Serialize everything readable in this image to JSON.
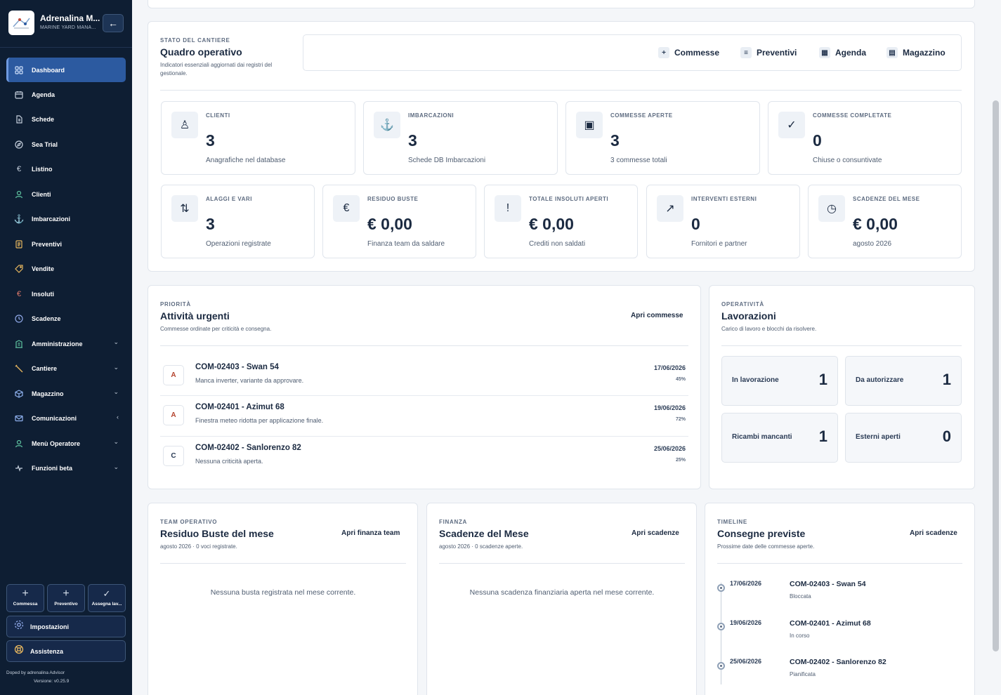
{
  "brand": {
    "name": "Adrenalina M...",
    "subtitle": "MARINE YARD MANA..."
  },
  "sidebar": {
    "items": [
      {
        "label": "Dashboard",
        "icon": "grid-icon",
        "active": true
      },
      {
        "label": "Agenda",
        "icon": "calendar-icon"
      },
      {
        "label": "Schede",
        "icon": "document-icon"
      },
      {
        "label": "Sea Trial",
        "icon": "compass-icon"
      },
      {
        "label": "Listino",
        "icon": "euro-icon"
      },
      {
        "label": "Clienti",
        "icon": "user-icon"
      },
      {
        "label": "Imbarcazioni",
        "icon": "anchor-icon"
      },
      {
        "label": "Preventivi",
        "icon": "file-list-icon"
      },
      {
        "label": "Vendite",
        "icon": "tag-icon"
      },
      {
        "label": "Insoluti",
        "icon": "euro-icon"
      },
      {
        "label": "Scadenze",
        "icon": "clock-icon"
      },
      {
        "label": "Amministrazione",
        "icon": "building-icon",
        "chevron": "⌄"
      },
      {
        "label": "Cantiere",
        "icon": "tools-icon",
        "chevron": "⌄"
      },
      {
        "label": "Magazzino",
        "icon": "box-icon",
        "chevron": "⌄"
      },
      {
        "label": "Comunicazioni",
        "icon": "mail-icon",
        "chevron": "‹"
      },
      {
        "label": "Menù Operatore",
        "icon": "operator-icon",
        "chevron": "⌄"
      },
      {
        "label": "Funzioni beta",
        "icon": "pulse-icon",
        "chevron": "⌄"
      }
    ],
    "quick_actions": [
      "Commessa",
      "Preventivo",
      "Assegna lav..."
    ],
    "settings": "Impostazioni",
    "support": "Assistenza",
    "doped": "Doped by adrenalina Advisor",
    "version": "Versione: v0.25.9"
  },
  "overview": {
    "kicker": "STATO DEL CANTIERE",
    "title": "Quadro operativo",
    "description": "Indicatori essenziali aggiornati dai registri del gestionale.",
    "tabs": [
      {
        "label": "Commesse",
        "icon": "+"
      },
      {
        "label": "Preventivi",
        "icon": "≡"
      },
      {
        "label": "Agenda",
        "icon": "▦"
      },
      {
        "label": "Magazzino",
        "icon": "▤"
      }
    ],
    "metrics_row1": [
      {
        "kicker": "CLIENTI",
        "value": "3",
        "desc": "Anagrafiche nel database",
        "icon": "♙"
      },
      {
        "kicker": "IMBARCAZIONI",
        "value": "3",
        "desc": "Schede DB Imbarcazioni",
        "icon": "⚓"
      },
      {
        "kicker": "COMMESSE APERTE",
        "value": "3",
        "desc": "3 commesse totali",
        "icon": "▣"
      },
      {
        "kicker": "COMMESSE COMPLETATE",
        "value": "0",
        "desc": "Chiuse o consuntivate",
        "icon": "✓"
      }
    ],
    "metrics_row2": [
      {
        "kicker": "ALAGGI E VARI",
        "value": "3",
        "desc": "Operazioni registrate",
        "icon": "⇅"
      },
      {
        "kicker": "RESIDUO BUSTE",
        "value": "€ 0,00",
        "desc": "Finanza team da saldare",
        "icon": "€"
      },
      {
        "kicker": "TOTALE INSOLUTI APERTI",
        "value": "€ 0,00",
        "desc": "Crediti non saldati",
        "icon": "!"
      },
      {
        "kicker": "INTERVENTI ESTERNI",
        "value": "0",
        "desc": "Fornitori e partner",
        "icon": "↗"
      },
      {
        "kicker": "SCADENZE DEL MESE",
        "value": "€ 0,00",
        "desc": "agosto 2026",
        "icon": "◷"
      }
    ]
  },
  "urgent": {
    "kicker": "PRIORITÀ",
    "title": "Attività urgenti",
    "description": "Commesse ordinate per criticità e consegna.",
    "link": "Apri commesse",
    "rows": [
      {
        "badge": "A",
        "title": "COM-02403 - Swan 54",
        "subtitle": "Manca inverter, variante da approvare.",
        "date": "17/06/2026",
        "progress": "45%"
      },
      {
        "badge": "A",
        "title": "COM-02401 - Azimut 68",
        "subtitle": "Finestra meteo ridotta per applicazione finale.",
        "date": "19/06/2026",
        "progress": "72%"
      },
      {
        "badge": "C",
        "title": "COM-02402 - Sanlorenzo 82",
        "subtitle": "Nessuna criticità aperta.",
        "date": "25/06/2026",
        "progress": "25%"
      }
    ],
    "badge_colors": {
      "A": "#b5452f",
      "C": "#2a3b55"
    }
  },
  "operations": {
    "kicker": "OPERATIVITÀ",
    "title": "Lavorazioni",
    "description": "Carico di lavoro e blocchi da risolvere.",
    "stats": [
      {
        "label": "In lavorazione",
        "value": "1"
      },
      {
        "label": "Da autorizzare",
        "value": "1"
      },
      {
        "label": "Ricambi mancanti",
        "value": "1"
      },
      {
        "label": "Esterni aperti",
        "value": "0"
      }
    ]
  },
  "team": {
    "kicker": "TEAM OPERATIVO",
    "title": "Residuo Buste del mese",
    "description": "agosto 2026 · 0 voci registrate.",
    "link": "Apri finanza team",
    "empty": "Nessuna busta registrata nel mese corrente."
  },
  "finance": {
    "kicker": "FINANZA",
    "title": "Scadenze del Mese",
    "description": "agosto 2026 · 0 scadenze aperte.",
    "link": "Apri scadenze",
    "empty": "Nessuna scadenza finanziaria aperta nel mese corrente."
  },
  "timeline": {
    "kicker": "TIMELINE",
    "title": "Consegne previste",
    "description": "Prossime date delle commesse aperte.",
    "link": "Apri scadenze",
    "entries": [
      {
        "date": "17/06/2026",
        "title": "COM-02403 - Swan 54",
        "status": "Bloccata"
      },
      {
        "date": "19/06/2026",
        "title": "COM-02401 - Azimut 68",
        "status": "In corso"
      },
      {
        "date": "25/06/2026",
        "title": "COM-02402 - Sanlorenzo 82",
        "status": "Pianificata"
      }
    ]
  },
  "colors": {
    "sidebar_bg": "#0e1e33",
    "active_nav": "#2c5aa0",
    "text_dark": "#1b2a41"
  }
}
